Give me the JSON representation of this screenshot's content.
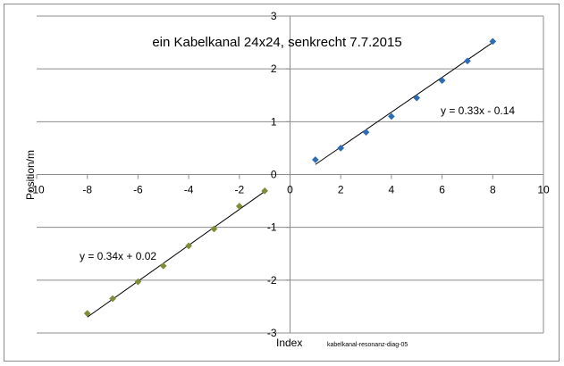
{
  "chart_data": {
    "type": "scatter",
    "title": "ein Kabelkanal 24x24, senkrecht 7.7.2015",
    "xlabel": "Index",
    "ylabel": "Position/m",
    "xlim": [
      -10,
      10
    ],
    "ylim": [
      -3,
      3
    ],
    "x_ticks": [
      -10,
      -8,
      -6,
      -4,
      -2,
      0,
      2,
      4,
      6,
      8,
      10
    ],
    "y_ticks": [
      -3,
      -2,
      -1,
      0,
      1,
      2,
      3
    ],
    "grid": "horizontal",
    "footnote": "kabelkanal-resonanz-diag-05",
    "series": [
      {
        "color": "#2e6db4",
        "marker": "diamond",
        "x": [
          1,
          2,
          3,
          4,
          5,
          6,
          7,
          8
        ],
        "y": [
          0.28,
          0.5,
          0.8,
          1.1,
          1.45,
          1.78,
          2.15,
          2.52
        ],
        "trendline": {
          "slope": 0.33,
          "intercept": -0.14,
          "x_range": [
            1,
            8
          ],
          "equation": "y = 0.33x - 0.14"
        }
      },
      {
        "color": "#7f8c3a",
        "marker": "diamond",
        "x": [
          -8,
          -7,
          -6,
          -5,
          -4,
          -3,
          -2,
          -1
        ],
        "y": [
          -2.63,
          -2.35,
          -2.03,
          -1.73,
          -1.35,
          -1.03,
          -0.6,
          -0.31
        ],
        "trendline": {
          "slope": 0.34,
          "intercept": 0.02,
          "x_range": [
            -8,
            -1
          ],
          "equation": "y = 0.34x + 0.02"
        }
      }
    ]
  }
}
